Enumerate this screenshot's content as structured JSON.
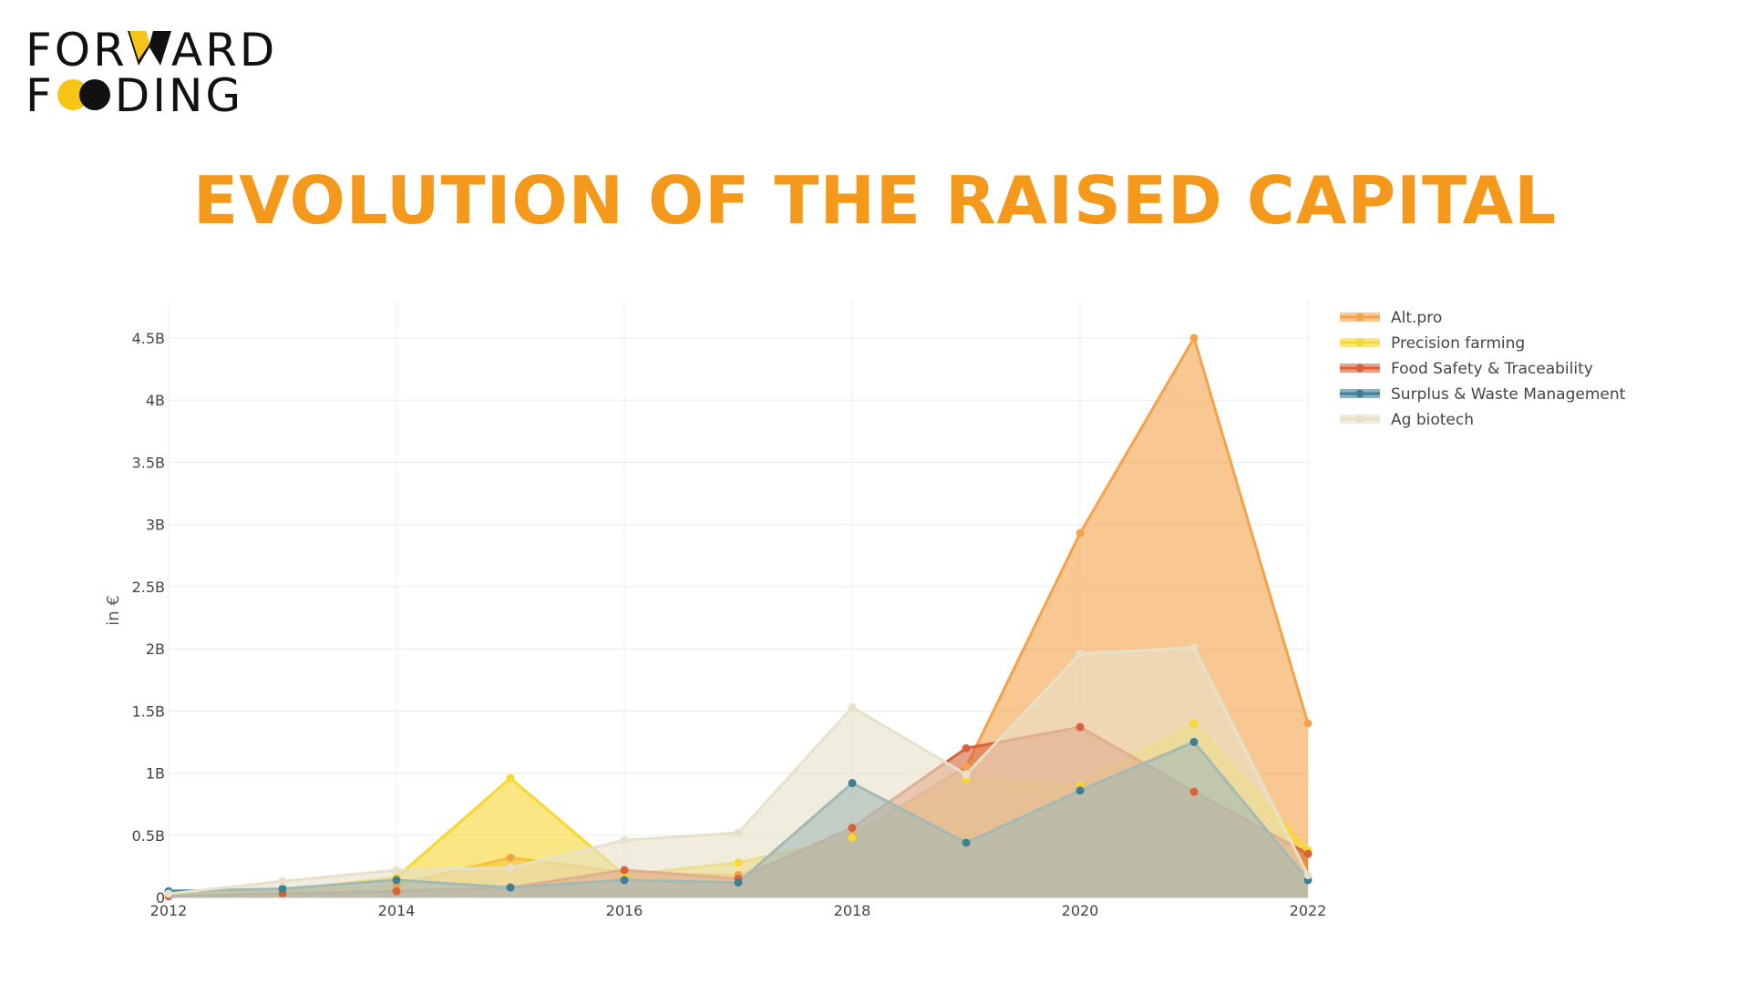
{
  "logo": {
    "line1_part1": "FOR",
    "line1_mark": "W",
    "line1_part2": "ARD",
    "line2_part1": "F",
    "line2_mark": "OO",
    "line2_part2": "DING",
    "text_color": "#111111",
    "accent_color": "#f5c518"
  },
  "title": "EVOLUTION OF THE RAISED CAPITAL",
  "title_color": "#f5991d",
  "chart_data": {
    "type": "area",
    "x": [
      2012,
      2013,
      2014,
      2015,
      2016,
      2017,
      2018,
      2019,
      2020,
      2021,
      2022
    ],
    "xticks": [
      "2012",
      "2014",
      "2016",
      "2018",
      "2020",
      "2022"
    ],
    "xtick_values": [
      2012,
      2014,
      2016,
      2018,
      2020,
      2022
    ],
    "xlim": [
      2012,
      2022
    ],
    "ylabel": "in €",
    "ylim": [
      0,
      4.8
    ],
    "yticks": [
      "0",
      "0.5B",
      "1B",
      "1.5B",
      "2B",
      "2.5B",
      "3B",
      "3.5B",
      "4B",
      "4.5B"
    ],
    "ytick_values": [
      0,
      0.5,
      1,
      1.5,
      2,
      2.5,
      3,
      3.5,
      4,
      4.5
    ],
    "unit": "B",
    "grid": true,
    "legend_position": "top-right",
    "series": [
      {
        "name": "Alt.pro",
        "color": "#f5a34a",
        "values": [
          0.02,
          0.05,
          0.1,
          0.32,
          0.2,
          0.18,
          0.5,
          1.05,
          2.93,
          4.5,
          1.4
        ]
      },
      {
        "name": "Precision farming",
        "color": "#f7d730",
        "values": [
          0.03,
          0.06,
          0.16,
          0.96,
          0.18,
          0.28,
          0.48,
          0.95,
          0.9,
          1.4,
          0.38
        ]
      },
      {
        "name": "Food Safety & Traceability",
        "color": "#d9623b",
        "values": [
          0.01,
          0.03,
          0.05,
          0.08,
          0.22,
          0.15,
          0.56,
          1.2,
          1.37,
          0.85,
          0.35
        ]
      },
      {
        "name": "Surplus & Waste Management",
        "color": "#3f7f96",
        "values": [
          0.05,
          0.07,
          0.14,
          0.08,
          0.14,
          0.12,
          0.92,
          0.44,
          0.86,
          1.25,
          0.14
        ]
      },
      {
        "name": "Ag biotech",
        "color": "#e6e1c8",
        "values": [
          0.03,
          0.13,
          0.22,
          0.24,
          0.46,
          0.52,
          1.53,
          0.99,
          1.96,
          2.01,
          0.18
        ]
      }
    ]
  }
}
